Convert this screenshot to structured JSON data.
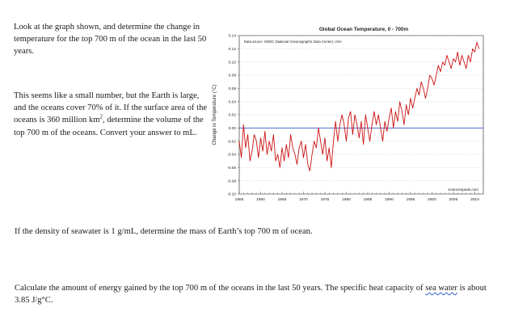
{
  "doc": {
    "q1": "Look at the graph shown, and determine the change in temperature for the top 700 m of the ocean in the last 50 years.",
    "q2": {
      "part_a": "This seems like a small number, but the Earth is large, and the oceans cover 70% of it.  If the surface area of the oceans is 360 million km",
      "sup": "2",
      "part_b": ", determine the volume of the top 700 m of the oceans.  Convert your answer to mL."
    },
    "q3": "If the density of seawater is 1 g/mL, determine the mass of Earth’s top 700 m of ocean.",
    "q4": {
      "part_a": "Calculate the amount of energy gained by the top 700 m of the oceans in the last 50 years.  The specific heat capacity of ",
      "underlined": "sea water",
      "part_b": " is about 3.85 J/g°C."
    }
  },
  "chart_data": {
    "type": "line",
    "title": "Global Ocean Temperature,  0 - 700m",
    "subtitle": "Data source: NODC (National Oceanographic Data Center), USA",
    "watermark": "sciencespeak.com",
    "ylabel": "Change in Temperature (°C)",
    "xlabel": "",
    "xlim": [
      1955,
      2012
    ],
    "ylim": [
      -0.1,
      0.14
    ],
    "yticks": [
      "0.14",
      "0.12",
      "0.10",
      "0.08",
      "0.06",
      "0.04",
      "0.02",
      "0.00",
      "-0.02",
      "-0.04",
      "-0.06",
      "-0.08",
      "-0.10"
    ],
    "xticks": [
      "1955",
      "1960",
      "1965",
      "1970",
      "1975",
      "1980",
      "1985",
      "1990",
      "1995",
      "2000",
      "2005",
      "2010"
    ],
    "grid": "horizontal",
    "zero_line_color": "#3355cc",
    "line_color": "#cc1111",
    "series": [
      {
        "x": [
          1955,
          1955.5,
          1956,
          1956.5,
          1957,
          1957.5,
          1958,
          1958.5,
          1959,
          1959.5,
          1960,
          1960.5,
          1961,
          1961.5,
          1962,
          1962.5,
          1963,
          1963.5,
          1964,
          1964.5,
          1965,
          1965.5,
          1966,
          1966.5,
          1967,
          1967.5,
          1968,
          1968.5,
          1969,
          1969.5,
          1970,
          1970.5,
          1971,
          1971.5,
          1972,
          1972.5,
          1973,
          1973.5,
          1974,
          1974.5,
          1975,
          1975.5,
          1976,
          1976.5,
          1977,
          1977.5,
          1978,
          1978.5,
          1979,
          1979.5,
          1980,
          1980.5,
          1981,
          1981.5,
          1982,
          1982.5,
          1983,
          1983.5,
          1984,
          1984.5,
          1985,
          1985.5,
          1986,
          1986.5,
          1987,
          1987.5,
          1988,
          1988.5,
          1989,
          1989.5,
          1990,
          1990.5,
          1991,
          1991.5,
          1992,
          1992.5,
          1993,
          1993.5,
          1994,
          1994.5,
          1995,
          1995.5,
          1996,
          1996.5,
          1997,
          1997.5,
          1998,
          1998.5,
          1999,
          1999.5,
          2000,
          2000.5,
          2001,
          2001.5,
          2002,
          2002.5,
          2003,
          2003.5,
          2004,
          2004.5,
          2005,
          2005.5,
          2006,
          2006.5,
          2007,
          2007.5,
          2008,
          2008.5,
          2009,
          2009.5,
          2010,
          2010.5,
          2011
        ],
        "y": [
          -0.02,
          -0.045,
          0.005,
          -0.03,
          -0.01,
          -0.05,
          -0.035,
          -0.01,
          -0.02,
          -0.045,
          -0.015,
          -0.035,
          -0.005,
          -0.04,
          -0.02,
          -0.035,
          -0.01,
          -0.05,
          -0.04,
          -0.06,
          -0.03,
          -0.05,
          -0.025,
          -0.045,
          -0.01,
          -0.03,
          -0.04,
          -0.055,
          -0.03,
          -0.02,
          -0.045,
          -0.025,
          -0.055,
          -0.065,
          -0.04,
          -0.02,
          -0.03,
          0.0,
          -0.02,
          -0.04,
          -0.015,
          -0.05,
          -0.03,
          -0.06,
          -0.02,
          0.01,
          -0.02,
          0.005,
          0.02,
          0.005,
          -0.02,
          0.015,
          0.025,
          -0.01,
          0.02,
          0.005,
          -0.015,
          0.01,
          -0.025,
          0.02,
          0.0,
          -0.02,
          0.005,
          0.025,
          0.005,
          0.02,
          0.0,
          -0.02,
          0.01,
          -0.005,
          0.015,
          0.03,
          0.0,
          0.025,
          0.01,
          0.04,
          0.025,
          0.005,
          0.035,
          0.02,
          0.045,
          0.03,
          0.045,
          0.06,
          0.05,
          0.07,
          0.06,
          0.045,
          0.06,
          0.08,
          0.075,
          0.065,
          0.08,
          0.095,
          0.085,
          0.1,
          0.095,
          0.11,
          0.1,
          0.09,
          0.105,
          0.1,
          0.115,
          0.095,
          0.11,
          0.1,
          0.09,
          0.11,
          0.1,
          0.12,
          0.115,
          0.13,
          0.12
        ]
      }
    ]
  }
}
